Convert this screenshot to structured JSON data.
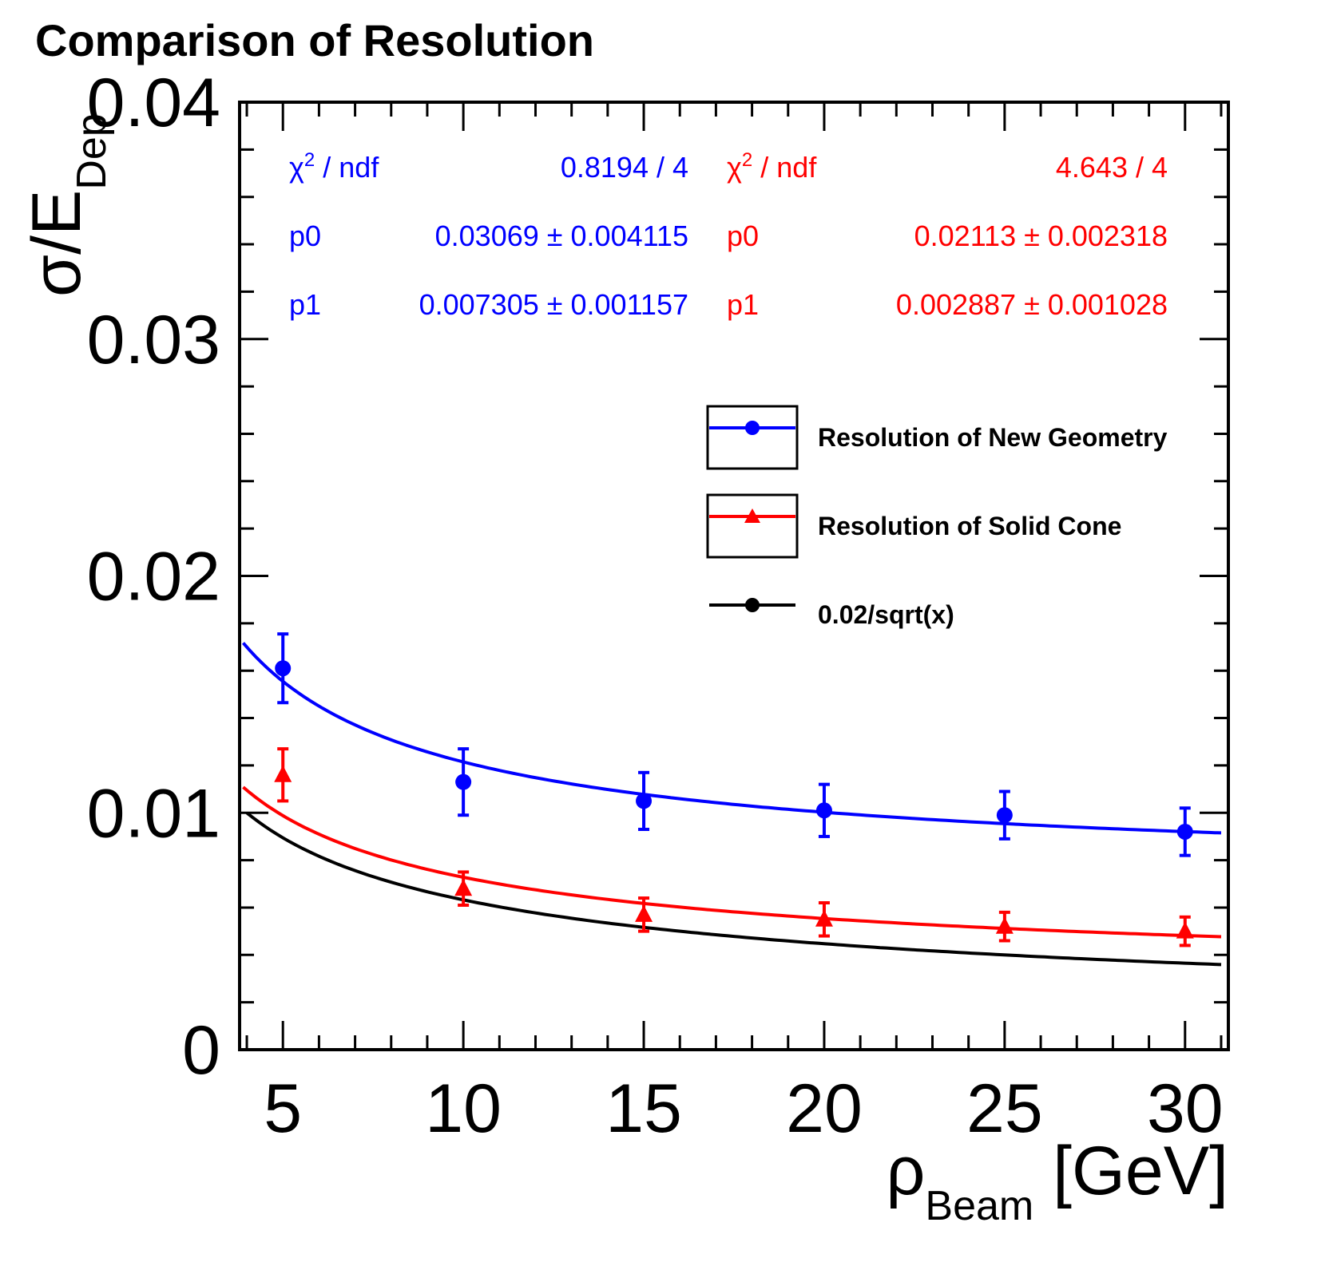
{
  "chart_data": {
    "type": "scatter",
    "title": "Comparison of Resolution",
    "xlabel": {
      "main": "ρ",
      "sub": "Beam",
      "suffix": " [GeV]"
    },
    "ylabel": {
      "main": "σ/E",
      "sub": "Dep"
    },
    "xlim": [
      3.8,
      31.2
    ],
    "ylim": [
      0,
      0.04
    ],
    "xticks": [
      5,
      10,
      15,
      20,
      25,
      30
    ],
    "xtick_labels": [
      "5",
      "10",
      "15",
      "20",
      "25",
      "30"
    ],
    "yticks": [
      0,
      0.01,
      0.02,
      0.03,
      0.04
    ],
    "ytick_labels": [
      "0",
      "0.01",
      "0.02",
      "0.03",
      "0.04"
    ],
    "grid": false,
    "legend_position": "upper-right",
    "series": [
      {
        "name": "Resolution of New Geometry",
        "color": "#0000ff",
        "marker": "circle",
        "x": [
          5,
          10,
          15,
          20,
          25,
          30
        ],
        "y": [
          0.0161,
          0.0113,
          0.0105,
          0.0101,
          0.0099,
          0.0092
        ],
        "yerr": [
          0.00145,
          0.0014,
          0.0012,
          0.0011,
          0.001,
          0.001
        ],
        "fit": {
          "p0": 0.03069,
          "p1": 0.007305,
          "xrange": [
            3.9,
            31.0
          ]
        }
      },
      {
        "name": "Resolution of Solid Cone",
        "color": "#ff0000",
        "marker": "triangle",
        "x": [
          5,
          10,
          15,
          20,
          25,
          30
        ],
        "y": [
          0.0116,
          0.0068,
          0.0057,
          0.0055,
          0.0052,
          0.005
        ],
        "yerr": [
          0.0011,
          0.0007,
          0.0007,
          0.0007,
          0.0006,
          0.0006
        ],
        "fit": {
          "p0": 0.02113,
          "p1": 0.002887,
          "xrange": [
            3.9,
            31.0
          ]
        }
      },
      {
        "name": "0.02/sqrt(x)",
        "color": "#000000",
        "marker": "circle",
        "curve": {
          "k": 0.02,
          "xrange": [
            4.0,
            31.0
          ]
        }
      }
    ],
    "stats_boxes": [
      {
        "color": "#0000ff",
        "rows": [
          {
            "label": "χ",
            "label_sup": "2",
            "label_rest": " / ndf",
            "value": "0.8194 / 4"
          },
          {
            "label": "p0",
            "value": "0.03069 ± 0.004115"
          },
          {
            "label": "p1",
            "value": "0.007305 ± 0.001157"
          }
        ]
      },
      {
        "color": "#ff0000",
        "rows": [
          {
            "label": "χ",
            "label_sup": "2",
            "label_rest": " / ndf",
            "value": "4.643 / 4"
          },
          {
            "label": "p0",
            "value": "0.02113 ± 0.002318"
          },
          {
            "label": "p1",
            "value": "0.002887 ± 0.001028"
          }
        ]
      }
    ]
  }
}
